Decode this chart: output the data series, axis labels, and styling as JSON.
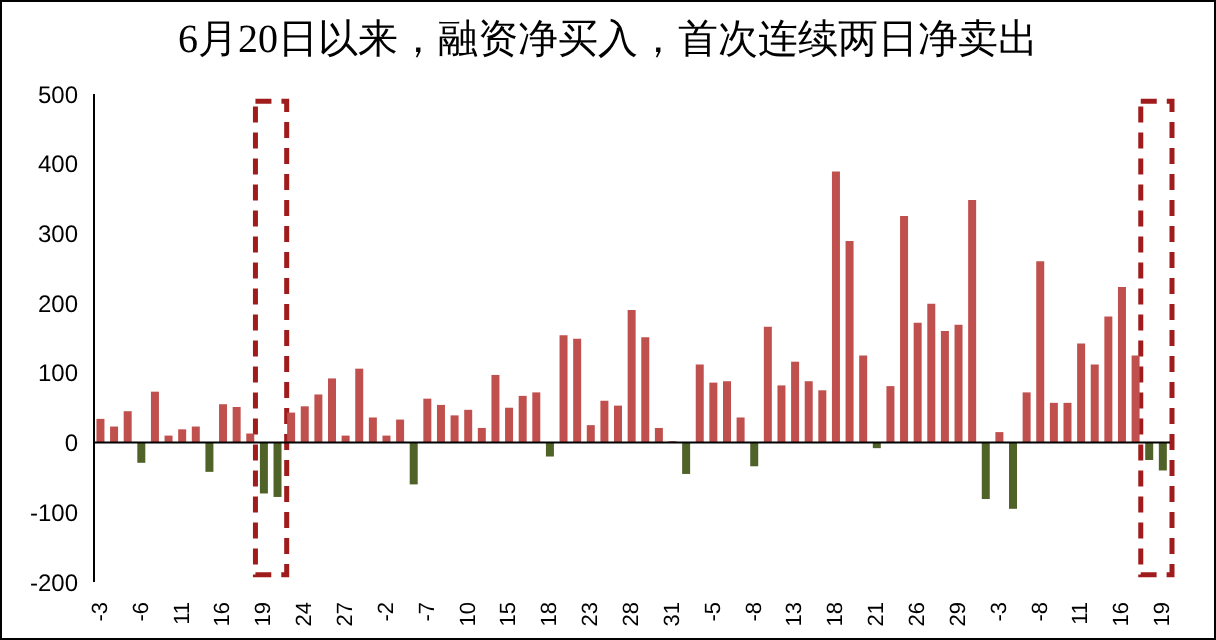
{
  "chart_data": {
    "type": "bar",
    "title": "6月20日以来，融资净买入，首次连续两日净卖出",
    "categories": [
      "-3",
      null,
      null,
      "-6",
      null,
      null,
      "11",
      null,
      null,
      "16",
      null,
      null,
      "19",
      null,
      null,
      "24",
      null,
      null,
      "27",
      null,
      null,
      "-2",
      null,
      null,
      "-7",
      null,
      null,
      "10",
      null,
      null,
      "15",
      null,
      null,
      "18",
      null,
      null,
      "23",
      null,
      null,
      "28",
      null,
      null,
      "31",
      null,
      null,
      "-5",
      null,
      null,
      "-8",
      null,
      null,
      "13",
      null,
      null,
      "18",
      null,
      null,
      "21",
      null,
      null,
      "26",
      null,
      null,
      "29",
      null,
      null,
      "-3",
      null,
      null,
      "-8",
      null,
      null,
      "11",
      null,
      null,
      "16",
      null,
      null,
      "19"
    ],
    "values": [
      34,
      23,
      45,
      -29,
      73,
      10,
      19,
      23,
      -42,
      55,
      51,
      13,
      -73,
      -78,
      43,
      52,
      69,
      92,
      10,
      106,
      36,
      10,
      33,
      -60,
      63,
      54,
      39,
      47,
      21,
      97,
      50,
      67,
      72,
      -20,
      154,
      149,
      25,
      60,
      53,
      190,
      151,
      21,
      2,
      -45,
      112,
      86,
      88,
      36,
      -34,
      166,
      82,
      116,
      88,
      75,
      389,
      289,
      125,
      -8,
      81,
      325,
      172,
      199,
      160,
      169,
      348,
      -81,
      15,
      -95,
      72,
      260,
      57,
      57,
      142,
      112,
      181,
      223,
      125,
      -25,
      -40
    ],
    "colors": [
      "#c0504d",
      "#c0504d",
      "#c0504d",
      "#4f6228",
      "#c0504d",
      "#c0504d",
      "#c0504d",
      "#c0504d",
      "#4f6228",
      "#c0504d",
      "#c0504d",
      "#c0504d",
      "#4f6228",
      "#4f6228",
      "#c0504d",
      "#c0504d",
      "#c0504d",
      "#c0504d",
      "#c0504d",
      "#c0504d",
      "#c0504d",
      "#c0504d",
      "#c0504d",
      "#4f6228",
      "#c0504d",
      "#c0504d",
      "#c0504d",
      "#c0504d",
      "#c0504d",
      "#c0504d",
      "#c0504d",
      "#c0504d",
      "#c0504d",
      "#4f6228",
      "#c0504d",
      "#c0504d",
      "#c0504d",
      "#c0504d",
      "#c0504d",
      "#c0504d",
      "#c0504d",
      "#c0504d",
      "#c0504d",
      "#4f6228",
      "#c0504d",
      "#c0504d",
      "#c0504d",
      "#c0504d",
      "#4f6228",
      "#c0504d",
      "#c0504d",
      "#c0504d",
      "#c0504d",
      "#c0504d",
      "#c0504d",
      "#c0504d",
      "#c0504d",
      "#4f6228",
      "#c0504d",
      "#c0504d",
      "#c0504d",
      "#c0504d",
      "#c0504d",
      "#c0504d",
      "#c0504d",
      "#4f6228",
      "#c0504d",
      "#4f6228",
      "#c0504d",
      "#c0504d",
      "#c0504d",
      "#c0504d",
      "#c0504d",
      "#c0504d",
      "#c0504d",
      "#c0504d",
      "#c0504d",
      "#4f6228",
      "#4f6228"
    ],
    "ylim": [
      -200,
      500
    ],
    "yticks": [
      -200,
      -100,
      0,
      100,
      200,
      300,
      400,
      500
    ],
    "ref_lines": [
      {
        "axis": "y",
        "value": 0,
        "color": "#000000"
      }
    ],
    "grid": false
  }
}
